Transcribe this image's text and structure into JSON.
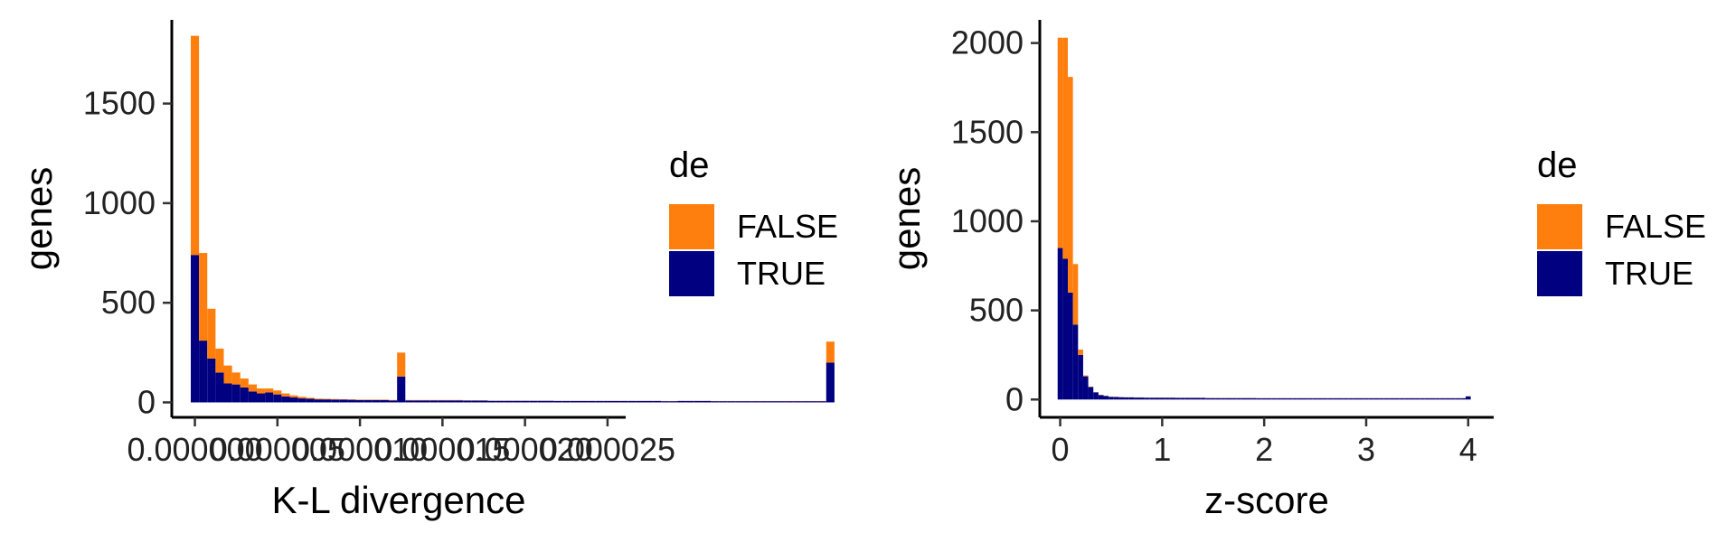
{
  "chart_data": [
    {
      "type": "bar",
      "stacked": true,
      "xlabel": "K-L divergence",
      "ylabel": "genes",
      "xlim": [
        -1.4e-06,
        2.61e-05
      ],
      "ylim": [
        -75,
        1920
      ],
      "xticks": [
        0.0,
        5e-06,
        1e-05,
        1.5e-05,
        2e-05,
        2.5e-05
      ],
      "xtick_labels": [
        "0.000000",
        "0.000005",
        "0.000010",
        "0.000015",
        "0.000020",
        "0.000025"
      ],
      "yticks": [
        0,
        500,
        1000,
        1500
      ],
      "ytick_labels": [
        "0",
        "500",
        "1000",
        "1500"
      ],
      "bin_start": -2.5e-07,
      "bin_width": 5e-07,
      "legend": {
        "title": "de",
        "position": "right",
        "entries": [
          "FALSE",
          "TRUE"
        ]
      },
      "colors": {
        "FALSE": "#FF7F0E",
        "TRUE": "#000080"
      },
      "series": [
        {
          "name": "TRUE",
          "values": [
            740,
            310,
            220,
            150,
            95,
            90,
            75,
            55,
            45,
            50,
            40,
            30,
            25,
            20,
            18,
            15,
            15,
            14,
            14,
            13,
            12,
            12,
            12,
            12,
            10,
            130,
            10,
            10,
            10,
            10,
            10,
            10,
            10,
            9,
            9,
            9,
            8,
            8,
            8,
            8,
            8,
            8,
            8,
            8,
            7,
            7,
            7,
            7,
            7,
            7,
            7,
            7,
            7,
            7,
            7,
            7,
            7,
            6,
            6,
            7,
            7,
            7,
            7,
            6,
            6,
            6,
            6,
            6,
            6,
            6,
            6,
            6,
            6,
            6,
            6,
            6,
            6,
            200
          ]
        },
        {
          "name": "FALSE",
          "values": [
            1100,
            440,
            250,
            120,
            90,
            60,
            45,
            35,
            25,
            20,
            20,
            15,
            10,
            8,
            5,
            4,
            3,
            3,
            2,
            2,
            2,
            2,
            2,
            2,
            2,
            120,
            2,
            2,
            2,
            2,
            2,
            2,
            2,
            1,
            1,
            1,
            1,
            1,
            1,
            1,
            1,
            1,
            1,
            1,
            1,
            1,
            1,
            1,
            1,
            1,
            1,
            1,
            1,
            1,
            1,
            1,
            1,
            1,
            1,
            1,
            1,
            1,
            1,
            1,
            1,
            1,
            1,
            1,
            1,
            1,
            1,
            1,
            1,
            1,
            1,
            1,
            1,
            105
          ]
        }
      ]
    },
    {
      "type": "bar",
      "stacked": true,
      "xlabel": "z-score",
      "ylabel": "genes",
      "xlim": [
        -0.2,
        4.25
      ],
      "ylim": [
        -100,
        2130
      ],
      "xticks": [
        0,
        1,
        2,
        3,
        4
      ],
      "xtick_labels": [
        "0",
        "1",
        "2",
        "3",
        "4"
      ],
      "yticks": [
        0,
        500,
        1000,
        1500,
        2000
      ],
      "ytick_labels": [
        "0",
        "500",
        "1000",
        "1500",
        "2000"
      ],
      "bin_start": -0.025,
      "bin_width": 0.05,
      "legend": {
        "title": "de",
        "position": "right",
        "entries": [
          "FALSE",
          "TRUE"
        ]
      },
      "colors": {
        "FALSE": "#FF7F0E",
        "TRUE": "#000080"
      },
      "series": [
        {
          "name": "TRUE",
          "values": [
            850,
            790,
            600,
            420,
            250,
            130,
            70,
            40,
            25,
            20,
            15,
            14,
            13,
            12,
            12,
            11,
            11,
            10,
            10,
            10,
            10,
            10,
            10,
            9,
            9,
            9,
            9,
            9,
            9,
            8,
            8,
            8,
            8,
            8,
            8,
            8,
            8,
            8,
            8,
            7,
            7,
            7,
            7,
            7,
            7,
            7,
            7,
            7,
            7,
            7,
            7,
            7,
            7,
            7,
            7,
            7,
            7,
            7,
            7,
            7,
            7,
            7,
            7,
            7,
            7,
            7,
            7,
            7,
            7,
            7,
            7,
            7,
            7,
            7,
            7,
            7,
            7,
            7,
            7,
            7,
            18
          ]
        },
        {
          "name": "FALSE",
          "values": [
            1180,
            1240,
            1210,
            340,
            30,
            5,
            2,
            1,
            1,
            1,
            1,
            1,
            1,
            1,
            1,
            1,
            1,
            1,
            1,
            1,
            1,
            1,
            1,
            1,
            1,
            1,
            1,
            1,
            1,
            1,
            1,
            1,
            1,
            1,
            1,
            1,
            1,
            1,
            1,
            1,
            1,
            1,
            1,
            1,
            1,
            1,
            1,
            1,
            1,
            1,
            1,
            1,
            1,
            1,
            1,
            1,
            1,
            1,
            1,
            1,
            1,
            1,
            1,
            1,
            1,
            1,
            1,
            1,
            1,
            1,
            1,
            1,
            1,
            1,
            1,
            1,
            1,
            1,
            1,
            1,
            1
          ]
        }
      ]
    }
  ]
}
